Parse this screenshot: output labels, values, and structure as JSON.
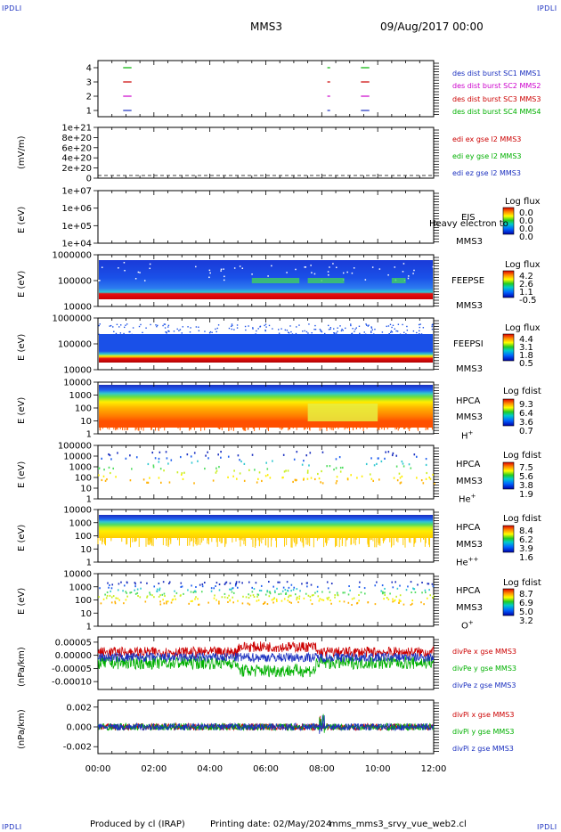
{
  "header": {
    "corner_tl": "IPDLI",
    "corner_tr": "IPDLI",
    "corner_bl": "IPDLI",
    "corner_br": "IPDLI",
    "spacecraft": "MMS3",
    "date": "09/Aug/2017 00:00"
  },
  "footer": {
    "produced": "Produced by cl (IRAP)",
    "printing": "Printing date: 02/May/2024",
    "script": "mms_mms3_srvy_vue_web2.cl"
  },
  "time_axis": {
    "ticks": [
      "00:00",
      "02:00",
      "04:00",
      "06:00",
      "08:00",
      "10:00",
      "12:00"
    ],
    "range_hours": [
      0,
      12
    ]
  },
  "panels": {
    "burst": {
      "yticks": [
        "4",
        "3",
        "2",
        "1"
      ],
      "labels": [
        {
          "text": "des dist burst SC1 MMS1",
          "color": "#1a2fbf"
        },
        {
          "text": "des dist burst SC2 MMS2",
          "color": "#cc00cc"
        },
        {
          "text": "des dist burst SC3 MMS3",
          "color": "#cc0000"
        },
        {
          "text": "des dist burst SC4 MMS4",
          "color": "#00b000"
        }
      ]
    },
    "edi": {
      "ylabel": "(mV/m)",
      "yticks": [
        "1e+21",
        "8e+20",
        "6e+20",
        "4e+20",
        "2e+20",
        "0"
      ],
      "labels": [
        {
          "text": "edi ex gse l2 MMS3",
          "color": "#cc0000"
        },
        {
          "text": "edi ey gse l2 MMS3",
          "color": "#00b000"
        },
        {
          "text": "edi ez gse l2 MMS3",
          "color": "#1a2fbf"
        }
      ]
    },
    "eis": {
      "ylabel": "E (eV)",
      "yticks": [
        "1e+07",
        "1e+06",
        "1e+05",
        "1e+04"
      ],
      "inst": "EIS",
      "sc": "MMS3",
      "overlay": "Heavy electron to",
      "cbar_title": "Log flux",
      "cbar_ticks": [
        "0.0",
        "0.0",
        "0.0",
        "0.0"
      ]
    },
    "feepse": {
      "ylabel": "E (eV)",
      "yticks": [
        "1000000",
        "100000",
        "10000"
      ],
      "inst": "FEEPSE",
      "sc": "MMS3",
      "cbar_title": "Log flux",
      "cbar_ticks": [
        "4.2",
        "2.6",
        "1.1",
        "-0.5"
      ]
    },
    "feepsi": {
      "ylabel": "E (eV)",
      "yticks": [
        "1000000",
        "100000",
        "10000"
      ],
      "inst": "FEEPSI",
      "sc": "MMS3",
      "cbar_title": "Log flux",
      "cbar_ticks": [
        "4.4",
        "3.1",
        "1.8",
        "0.5"
      ]
    },
    "hpca_h": {
      "ylabel": "E (eV)",
      "yticks": [
        "10000",
        "1000",
        "100",
        "10",
        "1"
      ],
      "inst": "HPCA",
      "sc": "MMS3",
      "species": "H",
      "charge": "+",
      "cbar_title": "Log fdist",
      "cbar_ticks": [
        "9.3",
        "6.4",
        "3.6",
        "0.7"
      ]
    },
    "hpca_he": {
      "ylabel": "E (eV)",
      "yticks": [
        "100000",
        "10000",
        "1000",
        "100",
        "10",
        "1"
      ],
      "inst": "HPCA",
      "sc": "MMS3",
      "species": "He",
      "charge": "+",
      "cbar_title": "Log fdist",
      "cbar_ticks": [
        "7.5",
        "5.6",
        "3.8",
        "1.9"
      ]
    },
    "hpca_hepp": {
      "ylabel": "E (eV)",
      "yticks": [
        "10000",
        "1000",
        "100",
        "10",
        "1"
      ],
      "inst": "HPCA",
      "sc": "MMS3",
      "species": "He",
      "charge": "++",
      "cbar_title": "Log fdist",
      "cbar_ticks": [
        "8.4",
        "6.2",
        "3.9",
        "1.6"
      ]
    },
    "hpca_o": {
      "ylabel": "E (eV)",
      "yticks": [
        "10000",
        "1000",
        "100",
        "10",
        "1"
      ],
      "inst": "HPCA",
      "sc": "MMS3",
      "species": "O",
      "charge": "+",
      "cbar_title": "Log fdist",
      "cbar_ticks": [
        "8.7",
        "6.9",
        "5.0",
        "3.2"
      ]
    },
    "divpe": {
      "ylabel": "(nPa/km)",
      "yticks": [
        "0.00005",
        "0.00000",
        "-0.00005",
        "-0.00010"
      ],
      "labels": [
        {
          "text": "divPe x gse MMS3",
          "color": "#cc0000"
        },
        {
          "text": "divPe y gse MMS3",
          "color": "#00b000"
        },
        {
          "text": "divPe z gse MMS3",
          "color": "#1a2fbf"
        }
      ]
    },
    "divpi": {
      "ylabel": "(nPa/km)",
      "yticks": [
        "0.002",
        "0.000",
        "-0.002"
      ],
      "labels": [
        {
          "text": "divPi x gse MMS3",
          "color": "#cc0000"
        },
        {
          "text": "divPi y gse MMS3",
          "color": "#00b000"
        },
        {
          "text": "divPi z gse MMS3",
          "color": "#1a2fbf"
        }
      ]
    }
  },
  "chart_data": {
    "type": "line",
    "xlabel": "",
    "x_range": [
      "00:00",
      "12:00"
    ],
    "series": [
      {
        "name": "divPe x gse MMS3",
        "color": "#cc0000"
      },
      {
        "name": "divPe y gse MMS3",
        "color": "#00b000"
      },
      {
        "name": "divPe z gse MMS3",
        "color": "#1a2fbf"
      },
      {
        "name": "divPi x gse MMS3",
        "color": "#cc0000"
      },
      {
        "name": "divPi y gse MMS3",
        "color": "#00b000"
      },
      {
        "name": "divPi z gse MMS3",
        "color": "#1a2fbf"
      }
    ],
    "divpe_ylim": [
      -0.00013,
      7e-05
    ],
    "divpi_ylim": [
      -0.0027,
      0.0027
    ]
  }
}
